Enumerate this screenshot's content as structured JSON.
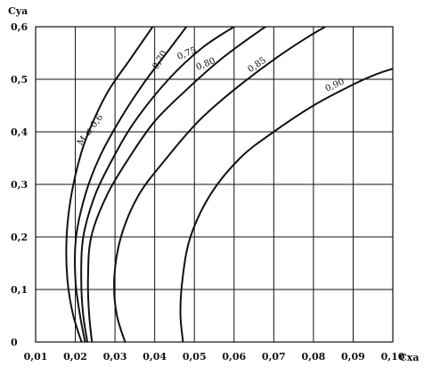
{
  "chart_data": {
    "type": "line",
    "title": "",
    "xlabel": "Cxa",
    "ylabel": "Cya",
    "xlim": [
      0.01,
      0.1
    ],
    "ylim": [
      0,
      0.6
    ],
    "grid": true,
    "x_ticks": [
      {
        "value": 0.01,
        "label": "0,01"
      },
      {
        "value": 0.02,
        "label": "0,02"
      },
      {
        "value": 0.03,
        "label": "0,03"
      },
      {
        "value": 0.04,
        "label": "0,04"
      },
      {
        "value": 0.05,
        "label": "0,05"
      },
      {
        "value": 0.06,
        "label": "0,06"
      },
      {
        "value": 0.07,
        "label": "0,07"
      },
      {
        "value": 0.08,
        "label": "0,08"
      },
      {
        "value": 0.09,
        "label": "0,09"
      },
      {
        "value": 0.1,
        "label": "0,10"
      }
    ],
    "y_ticks": [
      {
        "value": 0,
        "label": "0"
      },
      {
        "value": 0.1,
        "label": "0,1"
      },
      {
        "value": 0.2,
        "label": "0,2"
      },
      {
        "value": 0.3,
        "label": "0,3"
      },
      {
        "value": 0.4,
        "label": "0,4"
      },
      {
        "value": 0.5,
        "label": "0,5"
      },
      {
        "value": 0.6,
        "label": "0,6"
      }
    ],
    "series": [
      {
        "name": "M ≤ 0,6",
        "label_at": 5,
        "label_angle": -53,
        "points": [
          [
            0.0225,
            -0.02
          ],
          [
            0.0195,
            0.05
          ],
          [
            0.018,
            0.12
          ],
          [
            0.0178,
            0.2
          ],
          [
            0.019,
            0.28
          ],
          [
            0.0215,
            0.36
          ],
          [
            0.0245,
            0.42
          ],
          [
            0.0285,
            0.48
          ],
          [
            0.034,
            0.54
          ],
          [
            0.0395,
            0.6
          ]
        ]
      },
      {
        "name": "0,70",
        "label_at": 7,
        "label_angle": -60,
        "points": [
          [
            0.023,
            -0.02
          ],
          [
            0.0212,
            0.05
          ],
          [
            0.02,
            0.12
          ],
          [
            0.0202,
            0.2
          ],
          [
            0.0225,
            0.28
          ],
          [
            0.026,
            0.35
          ],
          [
            0.031,
            0.42
          ],
          [
            0.037,
            0.49
          ],
          [
            0.044,
            0.56
          ],
          [
            0.048,
            0.6
          ]
        ]
      },
      {
        "name": "0,75",
        "label_at": 7,
        "label_angle": -22,
        "points": [
          [
            0.0235,
            -0.02
          ],
          [
            0.022,
            0.05
          ],
          [
            0.0215,
            0.12
          ],
          [
            0.022,
            0.2
          ],
          [
            0.025,
            0.28
          ],
          [
            0.0295,
            0.35
          ],
          [
            0.035,
            0.42
          ],
          [
            0.0435,
            0.5
          ],
          [
            0.052,
            0.56
          ],
          [
            0.06,
            0.6
          ]
        ]
      },
      {
        "name": "0,80",
        "label_at": 7,
        "label_angle": -22,
        "points": [
          [
            0.0245,
            -0.02
          ],
          [
            0.0235,
            0.05
          ],
          [
            0.0232,
            0.12
          ],
          [
            0.024,
            0.2
          ],
          [
            0.028,
            0.28
          ],
          [
            0.0335,
            0.35
          ],
          [
            0.04,
            0.42
          ],
          [
            0.048,
            0.48
          ],
          [
            0.057,
            0.54
          ],
          [
            0.066,
            0.59
          ],
          [
            0.068,
            0.6
          ]
        ]
      },
      {
        "name": "0,85",
        "label_at": 7,
        "label_angle": -34,
        "points": [
          [
            0.0335,
            -0.02
          ],
          [
            0.0305,
            0.05
          ],
          [
            0.0298,
            0.12
          ],
          [
            0.0315,
            0.2
          ],
          [
            0.036,
            0.28
          ],
          [
            0.043,
            0.35
          ],
          [
            0.051,
            0.42
          ],
          [
            0.06,
            0.48
          ],
          [
            0.0705,
            0.54
          ],
          [
            0.0785,
            0.58
          ],
          [
            0.083,
            0.6
          ]
        ]
      },
      {
        "name": "0,90",
        "label_at": 7,
        "label_angle": -24,
        "points": [
          [
            0.0475,
            -0.02
          ],
          [
            0.0465,
            0.05
          ],
          [
            0.047,
            0.12
          ],
          [
            0.049,
            0.2
          ],
          [
            0.054,
            0.28
          ],
          [
            0.0615,
            0.35
          ],
          [
            0.07,
            0.4
          ],
          [
            0.08,
            0.45
          ],
          [
            0.09,
            0.49
          ],
          [
            0.096,
            0.51
          ],
          [
            0.1,
            0.52
          ]
        ]
      }
    ]
  }
}
